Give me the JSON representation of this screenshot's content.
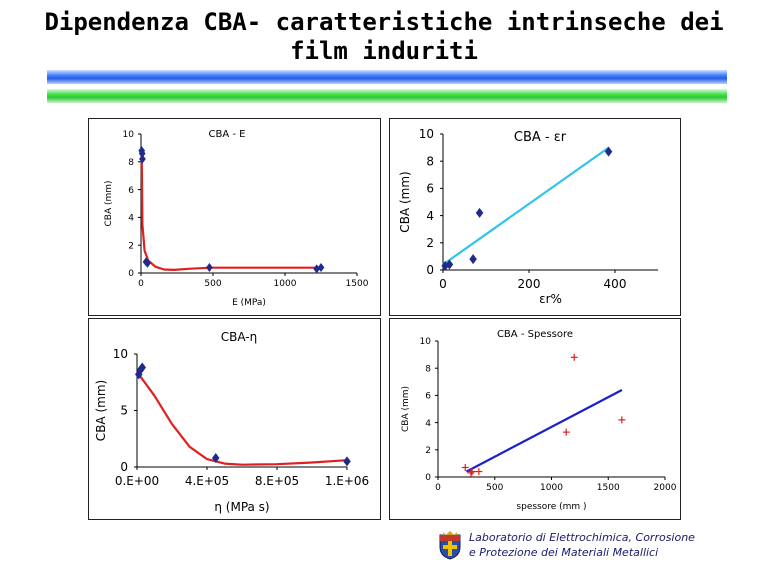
{
  "slide": {
    "title": "Dipendenza CBA- caratteristiche intrinseche dei film induriti",
    "footer_line1": "Laboratorio di Elettrochimica, Corrosione",
    "footer_line2": "e Protezione dei Materiali Metallici"
  },
  "chart_data": [
    {
      "id": "cba-e",
      "type": "scatter",
      "title": "CBA - E",
      "xlabel": "E (MPa)",
      "ylabel": "CBA (mm)",
      "xlim": [
        0,
        1500
      ],
      "ylim": [
        0,
        10
      ],
      "xticks": [
        0,
        500,
        1000,
        1500
      ],
      "yticks": [
        0,
        2,
        4,
        6,
        8,
        10
      ],
      "marker": "diamond",
      "marker_color": "#1f2a8a",
      "line_color": "#e02020",
      "points": [
        [
          5,
          8.8
        ],
        [
          8,
          8.6
        ],
        [
          10,
          8.2
        ],
        [
          35,
          0.8
        ],
        [
          45,
          0.7
        ],
        [
          475,
          0.4
        ],
        [
          1220,
          0.3
        ],
        [
          1250,
          0.4
        ]
      ],
      "trend": [
        [
          5,
          8.8
        ],
        [
          10,
          3.5
        ],
        [
          25,
          1.6
        ],
        [
          50,
          0.9
        ],
        [
          100,
          0.45
        ],
        [
          160,
          0.25
        ],
        [
          230,
          0.22
        ],
        [
          330,
          0.3
        ],
        [
          480,
          0.38
        ],
        [
          700,
          0.38
        ],
        [
          1000,
          0.38
        ],
        [
          1250,
          0.38
        ]
      ]
    },
    {
      "id": "cba-er",
      "type": "scatter",
      "title": "CBA - εr",
      "xlabel": "εr%",
      "ylabel": "CBA (mm)",
      "xlim": [
        0,
        500
      ],
      "ylim": [
        0,
        10
      ],
      "xticks": [
        0,
        200,
        400
      ],
      "yticks": [
        0,
        2,
        4,
        6,
        8,
        10
      ],
      "marker": "diamond",
      "marker_color": "#1f2a8a",
      "line_color": "#2ec4f0",
      "points": [
        [
          5,
          0.3
        ],
        [
          15,
          0.4
        ],
        [
          70,
          0.8
        ],
        [
          85,
          4.2
        ],
        [
          385,
          8.7
        ]
      ],
      "trend": [
        [
          0,
          0.4
        ],
        [
          385,
          9.0
        ]
      ]
    },
    {
      "id": "cba-eta",
      "type": "scatter",
      "title": "CBA-η",
      "xlabel": "η (MPa s)",
      "ylabel": "CBA (mm)",
      "xlim": [
        0,
        1200000
      ],
      "ylim": [
        0,
        10
      ],
      "xticks": [
        0,
        400000,
        800000,
        1200000
      ],
      "xticklabels": [
        "0.E+00",
        "4.E+05",
        "8.E+05",
        "1.E+06"
      ],
      "yticks": [
        0,
        5,
        10
      ],
      "marker": "diamond",
      "marker_color": "#1f2a8a",
      "line_color": "#e02020",
      "points": [
        [
          10000,
          8.2
        ],
        [
          20000,
          8.6
        ],
        [
          30000,
          8.8
        ],
        [
          450000,
          0.8
        ],
        [
          1200000,
          0.5
        ]
      ],
      "trend": [
        [
          10000,
          8.2
        ],
        [
          100000,
          6.3
        ],
        [
          200000,
          3.8
        ],
        [
          300000,
          1.8
        ],
        [
          400000,
          0.7
        ],
        [
          500000,
          0.3
        ],
        [
          600000,
          0.2
        ],
        [
          800000,
          0.25
        ],
        [
          1000000,
          0.4
        ],
        [
          1200000,
          0.6
        ]
      ]
    },
    {
      "id": "cba-spessore",
      "type": "scatter",
      "title": "CBA - Spessore",
      "xlabel": "spessore (mm )",
      "ylabel": "CBA (mm)",
      "xlim": [
        0,
        2000
      ],
      "ylim": [
        0,
        10
      ],
      "xticks": [
        0,
        500,
        1000,
        1500,
        2000
      ],
      "yticks": [
        0,
        2,
        4,
        6,
        8,
        10
      ],
      "marker": "plus",
      "marker_color": "#e02020",
      "line_color": "#1a20cc",
      "points": [
        [
          240,
          0.7
        ],
        [
          290,
          0.3
        ],
        [
          300,
          0.4
        ],
        [
          360,
          0.4
        ],
        [
          1130,
          3.3
        ],
        [
          1200,
          8.8
        ],
        [
          1620,
          4.2
        ]
      ],
      "trend": [
        [
          250,
          0.4
        ],
        [
          1620,
          6.4
        ]
      ]
    }
  ]
}
